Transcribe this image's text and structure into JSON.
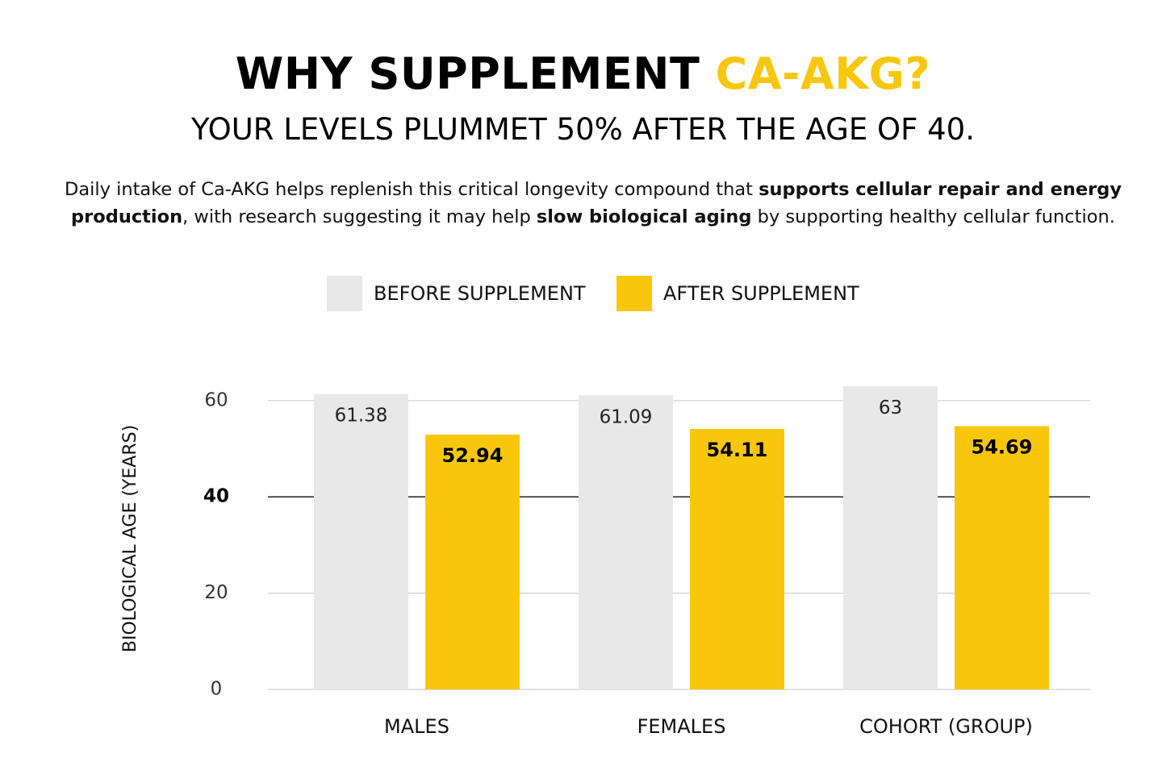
{
  "header": {
    "title_main": "WHY SUPPLEMENT ",
    "title_accent": "CA-AKG?",
    "subtitle": "YOUR LEVELS PLUMMET 50% AFTER THE AGE OF 40.",
    "description": {
      "part1": "Daily intake of Ca-AKG helps replenish this critical longevity compound that ",
      "bold1": "supports cellular repair and energy production",
      "part2": ", with research suggesting it may help ",
      "bold2": "slow biological aging",
      "part3": " by supporting healthy cellular function."
    }
  },
  "colors": {
    "before": "#e8e8e8",
    "after": "#f8c70c",
    "accent": "#f8c70c",
    "grid": "#d0d0d0",
    "highlight_line": "#333333"
  },
  "chart_data": {
    "type": "bar",
    "title": "",
    "xlabel": "",
    "ylabel": "BIOLOGICAL AGE (YEARS)",
    "ylim": [
      0,
      60
    ],
    "yticks": [
      0,
      20,
      40,
      60
    ],
    "highlighted_tick": 40,
    "legend_position": "top-center",
    "categories": [
      "MALES",
      "FEMALES",
      "COHORT (GROUP)"
    ],
    "series": [
      {
        "name": "BEFORE SUPPLEMENT",
        "values": [
          61.38,
          61.09,
          63
        ],
        "labels": [
          "61.38",
          "61.09",
          "63"
        ],
        "bold_labels": false
      },
      {
        "name": "AFTER SUPPLEMENT",
        "values": [
          52.94,
          54.11,
          54.69
        ],
        "labels": [
          "52.94",
          "54.11",
          "54.69"
        ],
        "bold_labels": true
      }
    ],
    "grid": true
  }
}
